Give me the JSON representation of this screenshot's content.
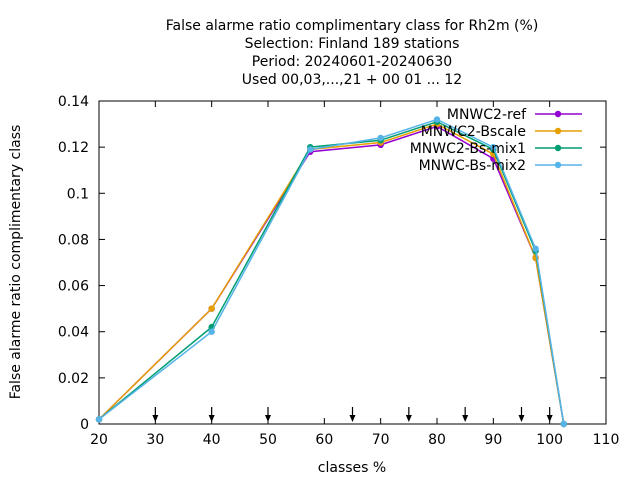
{
  "chart_data": {
    "type": "line",
    "title_lines": [
      "False alarme ratio complimentary class  for Rh2m (%)",
      "Selection: Finland    189 stations",
      "Period: 20240601-20240630",
      "Used 00,03,...,21 + 00 01 ... 12"
    ],
    "xlabel": "classes %",
    "ylabel": "False alarme ratio complimentary class",
    "xlim": [
      20,
      110
    ],
    "ylim": [
      0,
      0.14
    ],
    "xticks": [
      20,
      30,
      40,
      50,
      60,
      70,
      80,
      90,
      100,
      110
    ],
    "xtick_labels": [
      "20",
      "30",
      "40",
      "50",
      "60",
      "70",
      "80",
      "90",
      "100",
      "110"
    ],
    "yticks": [
      0,
      0.02,
      0.04,
      0.06,
      0.08,
      0.1,
      0.12,
      0.14
    ],
    "ytick_labels": [
      "0",
      "0.02",
      "0.04",
      "0.06",
      "0.08",
      "0.1",
      "0.12",
      "0.14"
    ],
    "arrow_markers_x": [
      30,
      40,
      50,
      65,
      75,
      85,
      95,
      100
    ],
    "legend_position": "top-right",
    "series": [
      {
        "name": "MNWC2-ref",
        "color": "#9400d3",
        "x": [
          20,
          40,
          57.5,
          70,
          80,
          90,
          97.5,
          102.5
        ],
        "y": [
          0.002,
          0.05,
          0.118,
          0.121,
          0.129,
          0.115,
          0.072,
          0
        ]
      },
      {
        "name": "MNWC2-Bscale",
        "color": "#e69f00",
        "x": [
          20,
          40,
          57.5,
          70,
          80,
          90,
          97.5,
          102.5
        ],
        "y": [
          0.002,
          0.05,
          0.119,
          0.122,
          0.13,
          0.117,
          0.072,
          0
        ]
      },
      {
        "name": "MNWC2-Bs-mix1",
        "color": "#009e73",
        "x": [
          20,
          40,
          57.5,
          70,
          80,
          90,
          97.5,
          102.5
        ],
        "y": [
          0.002,
          0.042,
          0.12,
          0.123,
          0.131,
          0.119,
          0.075,
          0
        ]
      },
      {
        "name": "MNWC-Bs-mix2",
        "color": "#56b4e9",
        "x": [
          20,
          40,
          57.5,
          70,
          80,
          90,
          97.5,
          102.5
        ],
        "y": [
          0.002,
          0.04,
          0.119,
          0.124,
          0.132,
          0.12,
          0.076,
          0
        ]
      }
    ]
  }
}
